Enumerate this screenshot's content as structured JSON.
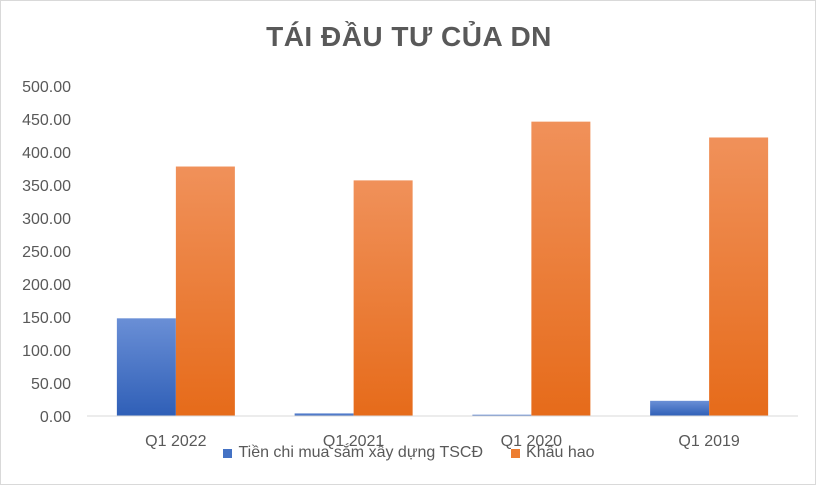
{
  "chart_data": {
    "type": "bar",
    "title": "TÁI ĐẦU TƯ CỦA DN",
    "categories": [
      "Q1 2022",
      "Q1 2021",
      "Q1 2020",
      "Q1 2019"
    ],
    "series": [
      {
        "name": "Tiền chi mua sắm xây dựng TSCĐ",
        "values": [
          148,
          4,
          2,
          23
        ],
        "color": "#4472c4"
      },
      {
        "name": "Khấu hao",
        "values": [
          378,
          357,
          446,
          422
        ],
        "color": "#ed7d31"
      }
    ],
    "yticks": [
      "0.00",
      "50.00",
      "100.00",
      "150.00",
      "200.00",
      "250.00",
      "300.00",
      "350.00",
      "400.00",
      "450.00",
      "500.00"
    ],
    "ylim": [
      0,
      500
    ],
    "grid": false,
    "legend": "bottom"
  }
}
